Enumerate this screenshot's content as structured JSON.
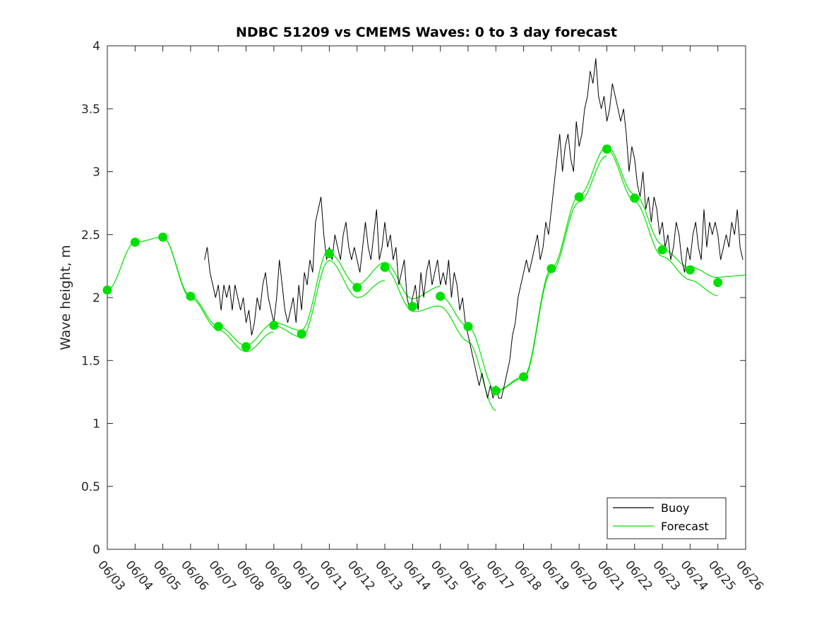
{
  "chart_data": {
    "type": "line",
    "title": "NDBC 51209 vs CMEMS Waves: 0 to 3 day forecast",
    "xlabel": "",
    "ylabel": "Wave height, m",
    "xlim": [
      0,
      23
    ],
    "ylim": [
      0,
      4
    ],
    "x_tick_labels": [
      "06/03",
      "06/04",
      "06/05",
      "06/06",
      "06/07",
      "06/08",
      "06/09",
      "06/10",
      "06/11",
      "06/12",
      "06/13",
      "06/14",
      "06/15",
      "06/16",
      "06/17",
      "06/18",
      "06/19",
      "06/20",
      "06/21",
      "06/22",
      "06/23",
      "06/24",
      "06/25",
      "06/26"
    ],
    "y_ticks": [
      "0",
      "0.5",
      "1",
      "1.5",
      "2",
      "2.5",
      "3",
      "3.5",
      "4"
    ],
    "y_tick_values": [
      0,
      0.5,
      1,
      1.5,
      2,
      2.5,
      3,
      3.5,
      4
    ],
    "legend": {
      "position": "bottom-right",
      "entries": [
        "Buoy",
        "Forecast"
      ]
    },
    "colors": {
      "buoy": "#000000",
      "forecast": "#00e000"
    },
    "series": [
      {
        "name": "Buoy",
        "x": [
          3.5,
          3.6,
          3.7,
          3.8,
          3.9,
          4.0,
          4.1,
          4.2,
          4.3,
          4.4,
          4.5,
          4.6,
          4.7,
          4.8,
          4.9,
          5.0,
          5.1,
          5.2,
          5.3,
          5.4,
          5.5,
          5.6,
          5.7,
          5.8,
          5.9,
          6.0,
          6.1,
          6.2,
          6.3,
          6.4,
          6.5,
          6.6,
          6.7,
          6.8,
          6.9,
          7.0,
          7.1,
          7.2,
          7.3,
          7.4,
          7.5,
          7.6,
          7.7,
          7.8,
          7.9,
          8.0,
          8.1,
          8.2,
          8.3,
          8.4,
          8.5,
          8.6,
          8.7,
          8.8,
          8.9,
          9.0,
          9.1,
          9.2,
          9.3,
          9.4,
          9.5,
          9.6,
          9.7,
          9.8,
          9.9,
          10.0,
          10.1,
          10.2,
          10.3,
          10.4,
          10.5,
          10.6,
          10.7,
          10.8,
          10.9,
          11.0,
          11.1,
          11.2,
          11.3,
          11.4,
          11.5,
          11.6,
          11.7,
          11.8,
          11.9,
          12.0,
          12.1,
          12.2,
          12.3,
          12.4,
          12.5,
          12.6,
          12.7,
          12.8,
          12.9,
          13.0,
          13.1,
          13.2,
          13.3,
          13.4,
          13.5,
          13.6,
          13.7,
          13.8,
          13.9,
          14.0,
          14.1,
          14.2,
          14.3,
          14.4,
          14.5,
          14.6,
          14.7,
          14.8,
          14.9,
          15.0,
          15.1,
          15.2,
          15.3,
          15.4,
          15.5,
          15.6,
          15.7,
          15.8,
          15.9,
          16.0,
          16.1,
          16.2,
          16.3,
          16.4,
          16.5,
          16.6,
          16.7,
          16.8,
          16.9,
          17.0,
          17.1,
          17.2,
          17.3,
          17.4,
          17.5,
          17.6,
          17.7,
          17.8,
          17.9,
          18.0,
          18.1,
          18.2,
          18.3,
          18.4,
          18.5,
          18.6,
          18.7,
          18.8,
          18.9,
          19.0,
          19.1,
          19.2,
          19.3,
          19.4,
          19.5,
          19.6,
          19.7,
          19.8,
          19.9,
          20.0,
          20.1,
          20.2,
          20.3,
          20.4,
          20.5,
          20.6,
          20.7,
          20.8,
          20.9,
          21.0,
          21.1,
          21.2,
          21.3,
          21.4,
          21.5,
          21.6,
          21.7,
          21.8,
          21.9,
          22.0,
          22.1,
          22.2,
          22.3,
          22.4,
          22.5,
          22.6,
          22.7,
          22.8,
          22.9
        ],
        "values": [
          2.3,
          2.4,
          2.2,
          2.1,
          2.0,
          2.1,
          1.9,
          2.1,
          2.0,
          2.1,
          1.9,
          2.1,
          2.0,
          1.9,
          2.0,
          1.8,
          1.9,
          1.7,
          1.8,
          2.0,
          1.9,
          2.1,
          2.2,
          2.0,
          1.9,
          1.8,
          2.0,
          2.3,
          2.1,
          1.9,
          1.8,
          1.9,
          2.0,
          1.8,
          2.1,
          1.9,
          2.2,
          2.1,
          2.3,
          2.2,
          2.6,
          2.7,
          2.8,
          2.5,
          2.3,
          2.4,
          2.3,
          2.5,
          2.4,
          2.3,
          2.5,
          2.6,
          2.4,
          2.3,
          2.4,
          2.3,
          2.2,
          2.4,
          2.6,
          2.4,
          2.3,
          2.5,
          2.7,
          2.3,
          2.4,
          2.6,
          2.4,
          2.5,
          2.3,
          2.4,
          2.1,
          2.2,
          2.3,
          2.0,
          1.9,
          2.0,
          2.1,
          1.9,
          2.2,
          2.0,
          2.2,
          2.3,
          2.1,
          2.2,
          2.3,
          2.1,
          2.2,
          2.1,
          2.3,
          2.0,
          2.2,
          2.1,
          1.9,
          2.0,
          1.8,
          1.7,
          1.6,
          1.5,
          1.4,
          1.3,
          1.4,
          1.3,
          1.2,
          1.3,
          1.2,
          1.3,
          1.2,
          1.2,
          1.3,
          1.4,
          1.5,
          1.7,
          1.8,
          2.0,
          2.1,
          2.2,
          2.3,
          2.2,
          2.3,
          2.4,
          2.5,
          2.3,
          2.4,
          2.6,
          2.5,
          2.7,
          2.9,
          3.1,
          3.3,
          3.0,
          3.2,
          3.3,
          3.1,
          3.0,
          3.4,
          3.2,
          3.3,
          3.5,
          3.6,
          3.8,
          3.7,
          3.9,
          3.6,
          3.5,
          3.6,
          3.4,
          3.5,
          3.7,
          3.6,
          3.5,
          3.4,
          3.5,
          3.3,
          3.0,
          3.2,
          3.1,
          2.9,
          2.8,
          3.0,
          2.7,
          2.8,
          2.6,
          2.8,
          2.7,
          2.5,
          2.6,
          2.4,
          2.5,
          2.3,
          2.4,
          2.6,
          2.5,
          2.3,
          2.2,
          2.4,
          2.3,
          2.5,
          2.6,
          2.4,
          2.3,
          2.7,
          2.4,
          2.6,
          2.5,
          2.6,
          2.5,
          2.3,
          2.4,
          2.5,
          2.4,
          2.6,
          2.5,
          2.7,
          2.4,
          2.3
        ]
      },
      {
        "name": "Forecast",
        "x": [
          0,
          1,
          2,
          3,
          4,
          5,
          6,
          7,
          8,
          9,
          10,
          11,
          12,
          13,
          14,
          15,
          16,
          17,
          18,
          19,
          20,
          21,
          22
        ],
        "values": [
          2.06,
          2.44,
          2.48,
          2.01,
          1.77,
          1.61,
          1.78,
          1.71,
          2.35,
          2.08,
          2.24,
          1.93,
          2.01,
          1.77,
          1.26,
          1.37,
          2.23,
          2.8,
          3.18,
          2.79,
          2.38,
          2.22,
          2.12
        ]
      }
    ]
  }
}
